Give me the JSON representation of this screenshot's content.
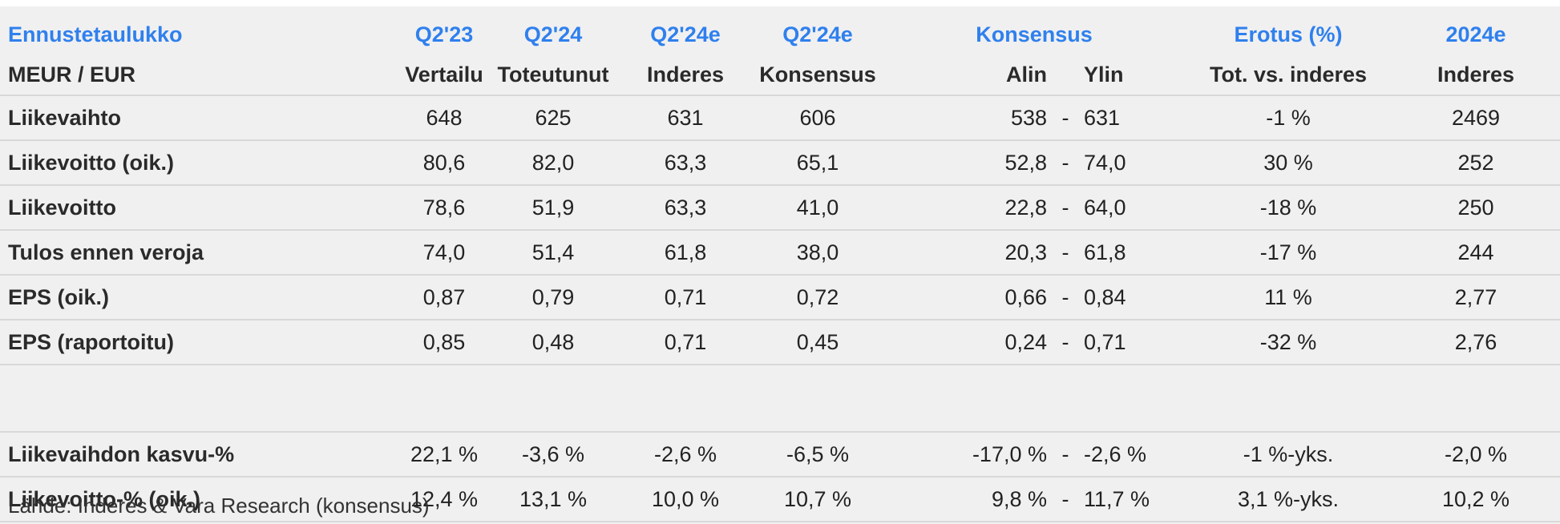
{
  "header": {
    "title": "Ennustetaulukko",
    "col_q223": "Q2'23",
    "col_q224": "Q2'24",
    "col_q224e_inderes": "Q2'24e",
    "col_q224e_konsensus": "Q2'24e",
    "col_konsensus": "Konsensus",
    "col_erotus": "Erotus (%)",
    "col_2024e": "2024e"
  },
  "subheader": {
    "unit": "MEUR / EUR",
    "vertailu": "Vertailu",
    "toteutunut": "Toteutunut",
    "inderes": "Inderes",
    "konsensus": "Konsensus",
    "alin": "Alin",
    "ylin": "Ylin",
    "tot_vs_inderes": "Tot. vs. inderes",
    "inderes_2024": "Inderes"
  },
  "rows": [
    {
      "label": "Liikevaihto",
      "q223": "648",
      "q224": "625",
      "q224e": "631",
      "kons": "606",
      "alin": "538",
      "dash": "-",
      "ylin": "631",
      "erotus": "-1 %",
      "e2024": "2469"
    },
    {
      "label": "Liikevoitto (oik.)",
      "q223": "80,6",
      "q224": "82,0",
      "q224e": "63,3",
      "kons": "65,1",
      "alin": "52,8",
      "dash": "-",
      "ylin": "74,0",
      "erotus": "30 %",
      "e2024": "252"
    },
    {
      "label": "Liikevoitto",
      "q223": "78,6",
      "q224": "51,9",
      "q224e": "63,3",
      "kons": "41,0",
      "alin": "22,8",
      "dash": "-",
      "ylin": "64,0",
      "erotus": "-18 %",
      "e2024": "250"
    },
    {
      "label": "Tulos ennen veroja",
      "q223": "74,0",
      "q224": "51,4",
      "q224e": "61,8",
      "kons": "38,0",
      "alin": "20,3",
      "dash": "-",
      "ylin": "61,8",
      "erotus": "-17 %",
      "e2024": "244"
    },
    {
      "label": "EPS (oik.)",
      "q223": "0,87",
      "q224": "0,79",
      "q224e": "0,71",
      "kons": "0,72",
      "alin": "0,66",
      "dash": "-",
      "ylin": "0,84",
      "erotus": "11 %",
      "e2024": "2,77"
    },
    {
      "label": "EPS (raportoitu)",
      "q223": "0,85",
      "q224": "0,48",
      "q224e": "0,71",
      "kons": "0,45",
      "alin": "0,24",
      "dash": "-",
      "ylin": "0,71",
      "erotus": "-32 %",
      "e2024": "2,76"
    }
  ],
  "growth_rows": [
    {
      "label": "Liikevaihdon kasvu-%",
      "q223": "22,1 %",
      "q224": "-3,6 %",
      "q224e": "-2,6 %",
      "kons": "-6,5 %",
      "alin": "-17,0 %",
      "dash": "-",
      "ylin": "-2,6 %",
      "erotus": "-1 %-yks.",
      "e2024": "-2,0 %"
    },
    {
      "label": "Liikevoitto-% (oik.)",
      "q223": "12,4 %",
      "q224": "13,1 %",
      "q224e": "10,0 %",
      "kons": "10,7 %",
      "alin": "9,8 %",
      "dash": "-",
      "ylin": "11,7 %",
      "erotus": "3,1 %-yks.",
      "e2024": "10,2 %"
    }
  ],
  "source": "Lähde: Inderes & Vara Research  (konsensus)",
  "colors": {
    "accent": "#2f80ed",
    "panel": "#f0f0f1",
    "rule": "#d8d8d8"
  }
}
